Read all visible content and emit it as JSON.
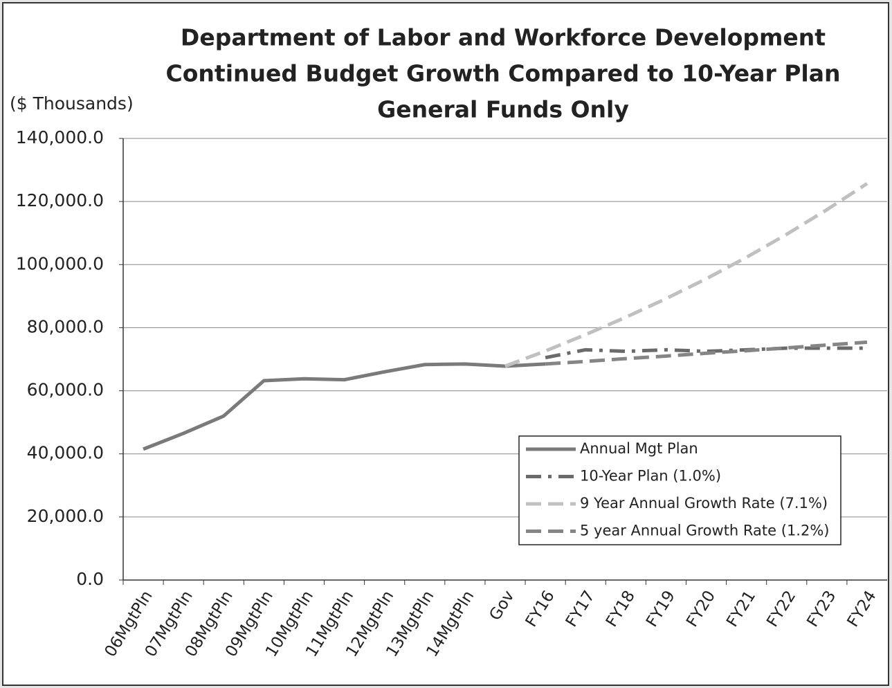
{
  "chart_data": {
    "type": "line",
    "title": [
      "Department of Labor and Workforce Development",
      "Continued Budget Growth Compared to 10-Year Plan",
      "General Funds Only"
    ],
    "y_label": "($ Thousands)",
    "categories": [
      "06MgtPln",
      "07MgtPln",
      "08MgtPln",
      "09MgtPln",
      "10MgtPln",
      "11MgtPln",
      "12MgtPln",
      "13MgtPln",
      "14MgtPln",
      "Gov",
      "FY16",
      "FY17",
      "FY18",
      "FY19",
      "FY20",
      "FY21",
      "FY22",
      "FY23",
      "FY24"
    ],
    "series": [
      {
        "name": "Annual Mgt Plan",
        "color": "#7a7a7a",
        "style": "solid",
        "values": [
          41500,
          46500,
          52000,
          63200,
          63800,
          63500,
          66000,
          68300,
          68500,
          67800,
          68500,
          null,
          null,
          null,
          null,
          null,
          null,
          null,
          null
        ]
      },
      {
        "name": "10-Year Plan (1.0%)",
        "color": "#6a6a6a",
        "style": "dash-dot",
        "values": [
          null,
          null,
          null,
          null,
          null,
          null,
          null,
          null,
          null,
          null,
          70500,
          73000,
          72500,
          73000,
          72500,
          73000,
          73500,
          73500,
          73500
        ]
      },
      {
        "name": "9 Year Annual Growth Rate (7.1%)",
        "color": "#c0c0c0",
        "style": "dashed",
        "values": [
          null,
          null,
          null,
          null,
          null,
          null,
          null,
          null,
          null,
          67800,
          72600,
          77800,
          83300,
          89200,
          95500,
          102300,
          109600,
          117400,
          125700
        ]
      },
      {
        "name": "5 year Annual Growth Rate (1.2%)",
        "color": "#858585",
        "style": "dashed",
        "values": [
          null,
          null,
          null,
          null,
          null,
          null,
          null,
          null,
          null,
          null,
          68500,
          69300,
          70200,
          71000,
          71900,
          72700,
          73600,
          74500,
          75400
        ]
      }
    ],
    "ylim": [
      0,
      140000
    ],
    "yticks": [
      {
        "value": 0,
        "label": "0.0"
      },
      {
        "value": 20000,
        "label": "20,000.0"
      },
      {
        "value": 40000,
        "label": "40,000.0"
      },
      {
        "value": 60000,
        "label": "60,000.0"
      },
      {
        "value": 80000,
        "label": "80,000.0"
      },
      {
        "value": 100000,
        "label": "100,000.0"
      },
      {
        "value": 120000,
        "label": "120,000.0"
      },
      {
        "value": 140000,
        "label": "140,000.0"
      }
    ],
    "grid": true,
    "legend": "lower-right"
  }
}
